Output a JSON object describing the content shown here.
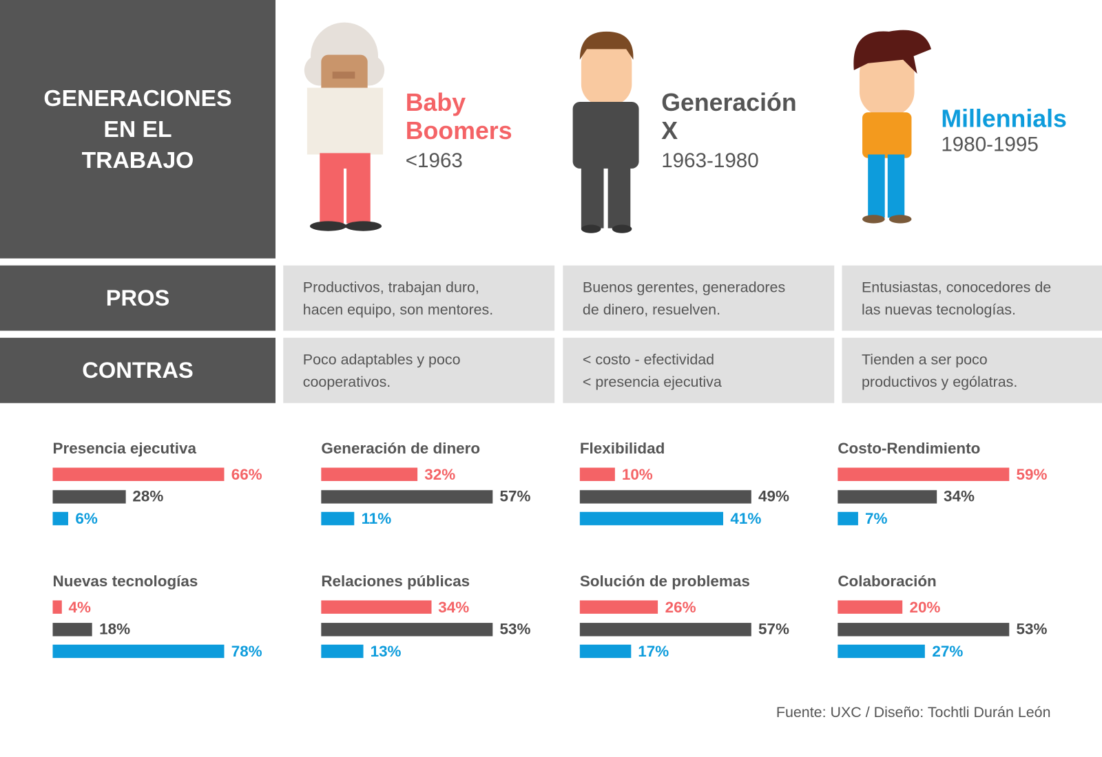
{
  "header": {
    "title_lines": [
      "GENERACIONES",
      "EN EL",
      "TRABAJO"
    ]
  },
  "colors": {
    "baby_boomers": "#f46366",
    "generacion_x": "#515151",
    "millennials": "#0d9cdc",
    "panel": "#555555",
    "cell": "#e0e0e0"
  },
  "generations": [
    {
      "name_lines": [
        "Baby",
        "Boomers"
      ],
      "years": "<1963",
      "color": "#f46366"
    },
    {
      "name_lines": [
        "Generación",
        "X"
      ],
      "years": "1963-1980",
      "color": "#555555"
    },
    {
      "name_lines": [
        "Millennials"
      ],
      "years": "1980-1995",
      "color": "#0d9cdc"
    }
  ],
  "rows": {
    "pros": {
      "label": "PROS",
      "cells": [
        [
          "Productivos, trabajan duro,",
          "hacen equipo, son mentores."
        ],
        [
          "Buenos gerentes, generadores",
          "de dinero, resuelven."
        ],
        [
          "Entusiastas, conocedores de",
          "las nuevas tecnologías."
        ]
      ]
    },
    "contras": {
      "label": "CONTRAS",
      "cells": [
        [
          "Poco adaptables y poco",
          "cooperativos."
        ],
        [
          "< costo - efectividad",
          "< presencia ejecutiva"
        ],
        [
          "Tienden a ser poco",
          "productivos y ególatras."
        ]
      ]
    }
  },
  "chart_data": [
    {
      "type": "bar",
      "title": "Presencia ejecutiva",
      "values": [
        66,
        28,
        6
      ],
      "labels": [
        "66%",
        "28%",
        "6%"
      ]
    },
    {
      "type": "bar",
      "title": "Generación de dinero",
      "values": [
        32,
        57,
        11
      ],
      "labels": [
        "32%",
        "57%",
        "11%"
      ]
    },
    {
      "type": "bar",
      "title": "Flexibilidad",
      "values": [
        10,
        49,
        41
      ],
      "labels": [
        "10%",
        "49%",
        "41%"
      ]
    },
    {
      "type": "bar",
      "title": "Costo-Rendimiento",
      "values": [
        59,
        34,
        7
      ],
      "labels": [
        "59%",
        "34%",
        "7%"
      ]
    },
    {
      "type": "bar",
      "title": "Nuevas tecnologías",
      "values": [
        4,
        18,
        78
      ],
      "labels": [
        "4%",
        "18%",
        "78%"
      ]
    },
    {
      "type": "bar",
      "title": "Relaciones públicas",
      "values": [
        34,
        53,
        13
      ],
      "labels": [
        "34%",
        "53%",
        "13%"
      ]
    },
    {
      "type": "bar",
      "title": "Solución de problemas",
      "values": [
        26,
        57,
        17
      ],
      "labels": [
        "26%",
        "57%",
        "17%"
      ]
    },
    {
      "type": "bar",
      "title": "Colaboración",
      "values": [
        20,
        53,
        27
      ],
      "labels": [
        "20%",
        "53%",
        "27%"
      ]
    }
  ],
  "footer": "Fuente: UXC / Diseño: Tochtli Durán León"
}
